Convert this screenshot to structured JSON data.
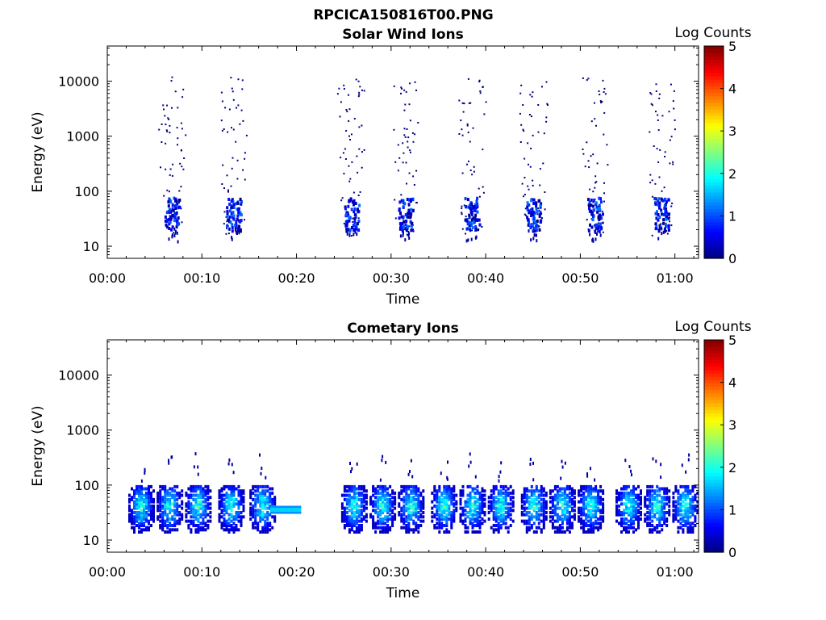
{
  "figure": {
    "title": "RPCICA150816T00.PNG"
  },
  "chart_data": [
    {
      "type": "heatmap",
      "title": "Solar Wind Ions",
      "xlabel": "Time",
      "ylabel": "Energy (eV)",
      "xticks": [
        "00:00",
        "00:10",
        "00:20",
        "00:30",
        "00:40",
        "00:50",
        "01:00"
      ],
      "xlim_minutes": [
        0,
        62.5
      ],
      "yticks": [
        "10",
        "100",
        "1000",
        "10000"
      ],
      "ylim_log10": [
        0.78,
        4.64
      ],
      "yscale": "log",
      "colorbar": {
        "label": "Log Counts",
        "ticks": [
          "0",
          "1",
          "2",
          "3",
          "4",
          "5"
        ],
        "range": [
          0,
          5
        ],
        "colormap": "jet"
      },
      "bursts": [
        {
          "t": 6.8,
          "note": "scatter 10-10000 eV, core 20-80 eV"
        },
        {
          "t": 13.3
        },
        {
          "t": 25.8
        },
        {
          "t": 31.5
        },
        {
          "t": 38.5
        },
        {
          "t": 45.0
        },
        {
          "t": 51.5
        },
        {
          "t": 58.5
        }
      ],
      "core_energy_eV": [
        20,
        80
      ],
      "max_log_counts": 1.2
    },
    {
      "type": "heatmap",
      "title": "Cometary Ions",
      "xlabel": "Time",
      "ylabel": "Energy (eV)",
      "xticks": [
        "00:00",
        "00:10",
        "00:20",
        "00:30",
        "00:40",
        "00:50",
        "01:00"
      ],
      "xlim_minutes": [
        0,
        62.5
      ],
      "yticks": [
        "10",
        "100",
        "1000",
        "10000"
      ],
      "ylim_log10": [
        0.78,
        4.64
      ],
      "yscale": "log",
      "colorbar": {
        "label": "Log Counts",
        "ticks": [
          "0",
          "1",
          "2",
          "3",
          "4",
          "5"
        ],
        "range": [
          0,
          5
        ],
        "colormap": "jet"
      },
      "bursts": [
        {
          "t": 3.5
        },
        {
          "t": 6.5
        },
        {
          "t": 9.5
        },
        {
          "t": 13.0
        },
        {
          "t": 16.3
        },
        {
          "t": 26.0
        },
        {
          "t": 29.0
        },
        {
          "t": 32.0
        },
        {
          "t": 35.5
        },
        {
          "t": 38.5
        },
        {
          "t": 41.5
        },
        {
          "t": 45.0
        },
        {
          "t": 48.0
        },
        {
          "t": 51.0
        },
        {
          "t": 55.0
        },
        {
          "t": 58.0
        },
        {
          "t": 61.0
        }
      ],
      "band": {
        "t_start": 17.2,
        "t_end": 20.5,
        "energy_eV": [
          30,
          42
        ],
        "log_counts": 1.7
      },
      "core_energy_eV": [
        15,
        100
      ],
      "max_log_counts": 2.4
    }
  ]
}
